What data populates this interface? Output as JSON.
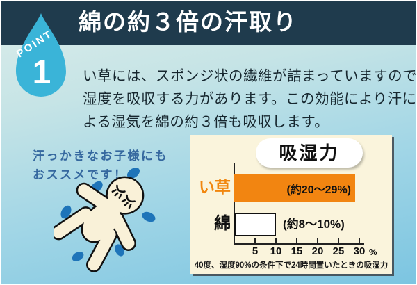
{
  "point_badge": {
    "label": "POINT",
    "number": "1"
  },
  "header": {
    "title": "綿の約３倍の汗取り"
  },
  "body_text": {
    "lines": [
      "い草には、スポンジ状の繊維が詰まっていますので、",
      "湿度を吸収する力があります。この効能により汗に",
      "よる湿気を綿の約３倍も吸収します。"
    ]
  },
  "note": {
    "lines": [
      "汗っかきなお子様にも",
      "おススメです！"
    ]
  },
  "chart_data": {
    "type": "bar",
    "orientation": "horizontal",
    "title": "吸湿力",
    "categories": [
      "い草",
      "綿"
    ],
    "values": [
      29,
      10
    ],
    "value_ranges": [
      [
        20,
        29
      ],
      [
        8,
        10
      ]
    ],
    "annotations": [
      "(約20〜29%)",
      "(約8〜10%)"
    ],
    "bar_colors": [
      "#f28511",
      "#ffffff"
    ],
    "xticks": [
      5,
      10,
      15,
      20,
      25,
      30
    ],
    "unit": "%",
    "xlim": [
      0,
      31
    ],
    "grid": false,
    "caption": "40度、湿度90%の条件下で24時間置いたときの吸湿力"
  },
  "colors": {
    "banner_bg": "#1f3b4d",
    "drop_badge": "#3ab4d8",
    "igusa_bar": "#f28511",
    "igusa_label": "#f1860e",
    "note_text": "#35689f",
    "chart_panel_bg": "#faf4dc",
    "sweat_drop": "#1e74b9",
    "figure_fill": "#f9f1d8"
  }
}
